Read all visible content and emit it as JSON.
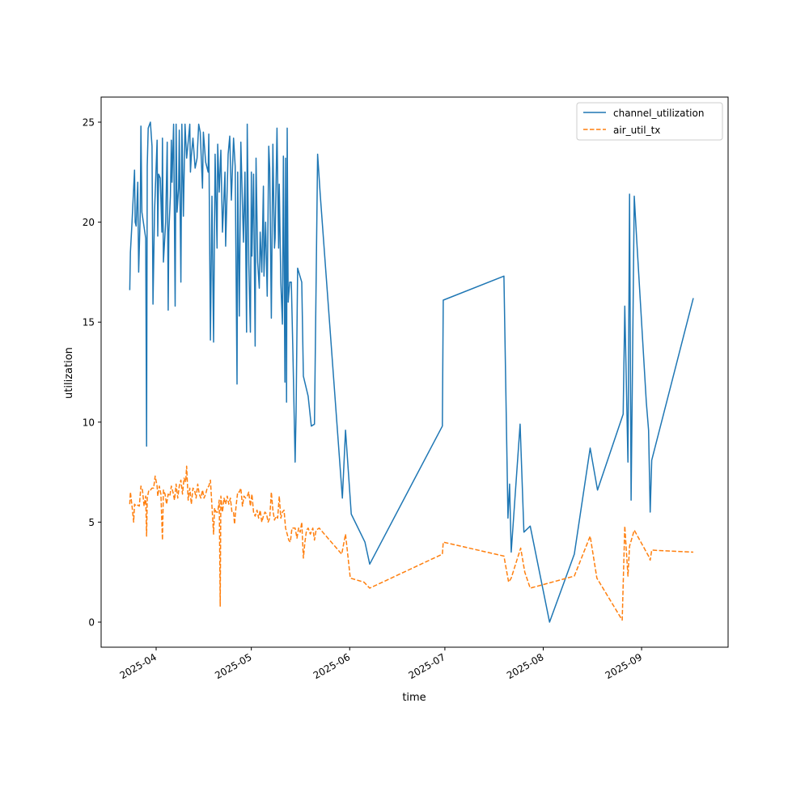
{
  "chart_data": {
    "type": "line",
    "title": "",
    "xlabel": "time",
    "ylabel": "utilization",
    "x_unit": "days since 2025-04-01",
    "xlim": [
      -9,
      183
    ],
    "ylim": [
      -1.25,
      26.2
    ],
    "grid": false,
    "legend_position": "top-right",
    "x_ticks": [
      {
        "label": "2025-04",
        "x": 0
      },
      {
        "label": "2025-05",
        "x": 30
      },
      {
        "label": "2025-06",
        "x": 61
      },
      {
        "label": "2025-07",
        "x": 91
      },
      {
        "label": "2025-08",
        "x": 122
      },
      {
        "label": "2025-09",
        "x": 153
      }
    ],
    "y_ticks": [
      {
        "label": "0",
        "y": 0
      },
      {
        "label": "5",
        "y": 5
      },
      {
        "label": "10",
        "y": 10
      },
      {
        "label": "15",
        "y": 15
      },
      {
        "label": "20",
        "y": 20
      },
      {
        "label": "25",
        "y": 25
      }
    ],
    "series": [
      {
        "name": "channel_utilization",
        "color": "#1f77b4",
        "style": "solid",
        "x": [
          -8.3,
          -8.1,
          -7.6,
          -6.8,
          -6.6,
          -6.3,
          -5.8,
          -5.5,
          -5.0,
          -4.8,
          -4.5,
          -3.3,
          -3.0,
          -2.8,
          -2.5,
          -1.8,
          -1.3,
          -1.0,
          -0.5,
          0.3,
          0.5,
          0.8,
          1.3,
          1.8,
          2.0,
          2.3,
          3.0,
          3.5,
          3.8,
          4.0,
          4.5,
          4.8,
          5.0,
          5.5,
          6.0,
          6.3,
          6.6,
          7.1,
          7.3,
          7.8,
          8.1,
          8.6,
          9.1,
          9.6,
          10.1,
          10.6,
          10.8,
          11.1,
          11.6,
          12.3,
          12.9,
          13.4,
          13.9,
          14.6,
          14.9,
          15.6,
          16.4,
          16.6,
          17.1,
          17.6,
          18.1,
          18.6,
          19.2,
          19.4,
          19.9,
          20.4,
          20.9,
          21.7,
          21.9,
          22.7,
          23.2,
          23.7,
          24.4,
          24.9,
          25.5,
          25.7,
          26.2,
          26.7,
          27.5,
          28.0,
          28.5,
          28.7,
          29.2,
          29.7,
          30.0,
          30.2,
          30.7,
          31.2,
          31.5,
          32.0,
          32.5,
          32.8,
          33.3,
          33.8,
          34.0,
          34.5,
          35.0,
          35.5,
          35.8,
          36.3,
          36.8,
          37.3,
          37.5,
          38.1,
          38.6,
          38.8,
          39.3,
          39.8,
          40.1,
          40.6,
          40.8,
          41.1,
          41.3,
          41.6,
          42.1,
          42.6,
          43.1,
          43.8,
          44.1,
          44.6,
          45.9,
          46.4,
          47.9,
          48.9,
          49.9,
          50.9,
          51.7,
          58.7,
          59.7,
          61.5,
          65.8,
          67.3,
          90.2,
          90.5,
          109.6,
          110.9,
          111.4,
          111.9,
          114.7,
          115.9,
          117.9,
          124.0,
          131.8,
          136.8,
          139.1,
          147.2,
          147.7,
          148.7,
          149.2,
          149.7,
          150.7,
          151.5,
          154.5,
          155.2,
          155.7,
          156.2,
          169.3
        ],
        "y": [
          16.6,
          18.5,
          20,
          22.6,
          20,
          19.8,
          22,
          17.5,
          20.5,
          24.8,
          20.5,
          19.2,
          8.8,
          22.8,
          24.7,
          25,
          23.8,
          15.9,
          20.5,
          24.1,
          19.3,
          22.4,
          22.2,
          19.5,
          24.2,
          18,
          20,
          24,
          15.6,
          19.5,
          21.3,
          24.1,
          22,
          24.9,
          15.8,
          24.9,
          20.5,
          21.7,
          24.6,
          17,
          24.9,
          20.3,
          24.9,
          23.2,
          24,
          24.9,
          22.5,
          23.3,
          24.2,
          22.7,
          23.2,
          24.9,
          24.5,
          21.7,
          24.5,
          23,
          22.5,
          24.4,
          14.1,
          21.3,
          14,
          23.4,
          18.7,
          23.9,
          21.5,
          23.6,
          19.5,
          22.5,
          18.8,
          23.4,
          24.3,
          21.1,
          24.2,
          22.8,
          11.9,
          22.5,
          15.3,
          24,
          19,
          22.5,
          14.5,
          24.9,
          18,
          14.5,
          22.5,
          18.3,
          22.4,
          13.8,
          23.2,
          18,
          16.7,
          19.5,
          17.5,
          21.8,
          17.3,
          20,
          16.3,
          23.8,
          22.7,
          15.2,
          23.9,
          18.7,
          19.2,
          24.7,
          18.7,
          21.9,
          17,
          14.9,
          23.3,
          12,
          23.2,
          11,
          24.7,
          16,
          17,
          17,
          13.6,
          8,
          10.5,
          17.7,
          17,
          12.3,
          11.3,
          9.8,
          9.9,
          23.4,
          21.4,
          6.2,
          9.6,
          5.4,
          4,
          2.9,
          9.8,
          16.1,
          17.3,
          5.2,
          6.9,
          3.5,
          9.9,
          4.5,
          4.8,
          0,
          3.4,
          8.7,
          6.6,
          10.4,
          15.8,
          8,
          21.4,
          6.1,
          21.3,
          19,
          11,
          9.6,
          5.5,
          8.1,
          16.2
        ]
      },
      {
        "name": "air_util_tx",
        "color": "#ff7f0e",
        "style": "dashed",
        "x": [
          -8.3,
          -8.1,
          -7.6,
          -7.1,
          -6.8,
          -6.3,
          -5.8,
          -5.3,
          -4.8,
          -4.3,
          -3.8,
          -3.3,
          -3.0,
          -2.8,
          -2.3,
          -1.8,
          -1.3,
          -0.8,
          -0.3,
          0.3,
          0.5,
          1.0,
          1.5,
          2.0,
          2.3,
          2.8,
          3.3,
          3.8,
          4.3,
          4.8,
          5.3,
          5.8,
          6.3,
          6.8,
          7.3,
          7.8,
          8.3,
          8.8,
          9.3,
          9.6,
          10.1,
          10.6,
          11.1,
          11.6,
          12.1,
          12.6,
          13.1,
          13.6,
          14.1,
          14.6,
          15.1,
          15.6,
          16.1,
          16.6,
          17.1,
          17.6,
          18.1,
          18.4,
          18.9,
          19.4,
          19.9,
          20.2,
          20.4,
          20.9,
          21.4,
          21.9,
          22.4,
          22.9,
          23.4,
          23.9,
          24.4,
          24.7,
          25.2,
          25.7,
          26.2,
          26.7,
          27.2,
          27.7,
          28.2,
          28.7,
          29.2,
          29.7,
          30.2,
          30.7,
          31.2,
          31.8,
          32.3,
          32.8,
          33.3,
          33.8,
          34.3,
          34.8,
          35.3,
          35.8,
          36.3,
          36.8,
          37.3,
          37.8,
          38.3,
          38.8,
          39.3,
          39.8,
          40.3,
          40.8,
          41.3,
          41.8,
          42.3,
          42.8,
          43.3,
          43.8,
          44.4,
          44.9,
          45.4,
          45.9,
          46.4,
          46.9,
          47.4,
          47.9,
          48.6,
          49.4,
          49.9,
          50.4,
          51.4,
          58.5,
          59.7,
          61.2,
          65.5,
          67.3,
          90.2,
          90.5,
          109.6,
          111.1,
          111.9,
          114.9,
          116.2,
          117.9,
          131.8,
          136.8,
          138.9,
          146.9,
          147.7,
          148.7,
          149.2,
          150.7,
          155.2,
          155.7,
          156.2,
          169.3
        ],
        "y": [
          5.9,
          6.5,
          5.8,
          5,
          5.9,
          5.8,
          5.85,
          5.8,
          6.8,
          6.6,
          5.8,
          6.3,
          4.3,
          6.2,
          6.6,
          6.6,
          6.7,
          6.7,
          7.3,
          6.8,
          6.3,
          6.8,
          6.4,
          4.1,
          6.6,
          6.4,
          5.9,
          6.4,
          6.3,
          6.8,
          6.5,
          6.1,
          6.9,
          6.2,
          6.8,
          7.1,
          6.4,
          7.2,
          7,
          7.8,
          6.1,
          6.7,
          5.9,
          6.7,
          6.6,
          6.2,
          6.9,
          6.4,
          6.2,
          6.6,
          6.2,
          6.4,
          6.7,
          6.8,
          7.1,
          5.8,
          4.4,
          5.7,
          5.5,
          5.5,
          6.1,
          0.8,
          6.3,
          5.5,
          6.2,
          5.9,
          6.3,
          5.9,
          6.2,
          5.5,
          5.5,
          4.9,
          5.8,
          6.5,
          6.5,
          6.7,
          5.8,
          6.3,
          6.2,
          6.3,
          6.5,
          5.8,
          6.4,
          5.5,
          5.3,
          5.6,
          5.2,
          5.6,
          5,
          5.3,
          5.5,
          5.4,
          5,
          5.2,
          6.5,
          5.6,
          5.1,
          5.3,
          5.2,
          6.3,
          5.2,
          5.5,
          5.6,
          4.7,
          4.4,
          4.1,
          4,
          4.7,
          4.7,
          4.7,
          4.2,
          4.7,
          4.5,
          5,
          3.2,
          4,
          4.6,
          4.7,
          4.4,
          4.7,
          4.1,
          4.6,
          4.7,
          3.4,
          4.4,
          2.2,
          2,
          1.7,
          3.4,
          4,
          3.3,
          2,
          2.2,
          3.7,
          2.5,
          1.7,
          2.3,
          4.3,
          2.2,
          0.1,
          4.8,
          2.3,
          3.8,
          4.6,
          3.3,
          3.1,
          3.6,
          3.5
        ]
      }
    ]
  }
}
